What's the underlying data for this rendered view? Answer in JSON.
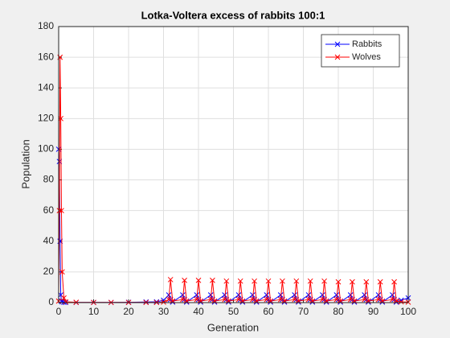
{
  "chart_data": {
    "type": "line",
    "title": "Lotka-Voltera excess of rabbits 100:1",
    "xlabel": "Generation",
    "ylabel": "Population",
    "x": [
      0,
      0.2,
      0.4,
      0.6,
      0.8,
      1,
      1.5,
      2,
      5,
      10,
      15,
      20,
      25,
      28,
      30,
      31.5,
      32,
      32.6,
      35.5,
      36,
      36.6,
      39.5,
      40,
      40.6,
      43.5,
      44,
      44.6,
      47.5,
      48,
      48.6,
      51.5,
      52,
      52.6,
      55.5,
      56,
      56.6,
      59.5,
      60,
      60.6,
      63.5,
      64,
      64.6,
      67.5,
      68,
      68.6,
      71.5,
      72,
      72.6,
      75.5,
      76,
      76.6,
      79.5,
      80,
      80.6,
      83.5,
      84,
      84.6,
      87.5,
      88,
      88.6,
      91.5,
      92,
      92.6,
      95.5,
      96,
      96.6,
      98,
      100
    ],
    "series": [
      {
        "name": "Rabbits",
        "color": "#0000ff",
        "values": [
          100,
          92,
          40,
          5,
          1,
          0.5,
          0.2,
          0.1,
          0.1,
          0.1,
          0.1,
          0.2,
          0.4,
          0.5,
          1.5,
          5,
          2,
          0.3,
          5,
          2,
          0.3,
          5,
          2,
          0.3,
          5,
          2,
          0.3,
          5,
          2,
          0.3,
          5,
          2,
          0.3,
          5,
          2,
          0.3,
          5,
          2,
          0.3,
          5,
          2,
          0.3,
          5,
          2,
          0.3,
          5,
          2,
          0.3,
          5,
          2,
          0.3,
          5,
          2,
          0.3,
          5,
          2,
          0.3,
          5,
          2,
          0.3,
          5,
          2,
          0.3,
          5,
          2,
          0.3,
          1.5,
          3
        ]
      },
      {
        "name": "Wolves",
        "color": "#ff0000",
        "values": [
          1,
          60,
          160,
          120,
          60,
          20,
          3,
          0.5,
          0.2,
          0.1,
          0.1,
          0.1,
          0.1,
          0.1,
          0.3,
          2,
          15,
          1,
          2,
          14.5,
          1,
          2,
          14.5,
          1,
          2,
          14.5,
          1,
          2,
          14,
          1,
          2,
          14,
          1,
          2,
          14,
          1,
          2,
          14,
          1,
          2,
          14,
          1,
          2,
          14,
          1,
          2,
          14,
          1,
          2,
          14,
          1,
          2,
          13.5,
          1,
          2,
          13.5,
          1,
          2,
          13.5,
          1,
          2,
          13.5,
          1,
          2,
          13.5,
          1,
          0.5,
          0.3
        ]
      }
    ],
    "xlim": [
      0,
      100
    ],
    "xticks": [
      0,
      10,
      20,
      30,
      40,
      50,
      60,
      70,
      80,
      90,
      100
    ],
    "ylim": [
      0,
      180
    ],
    "yticks": [
      0,
      20,
      40,
      60,
      80,
      100,
      120,
      140,
      160,
      180
    ],
    "grid": true,
    "legend": "northeast"
  }
}
